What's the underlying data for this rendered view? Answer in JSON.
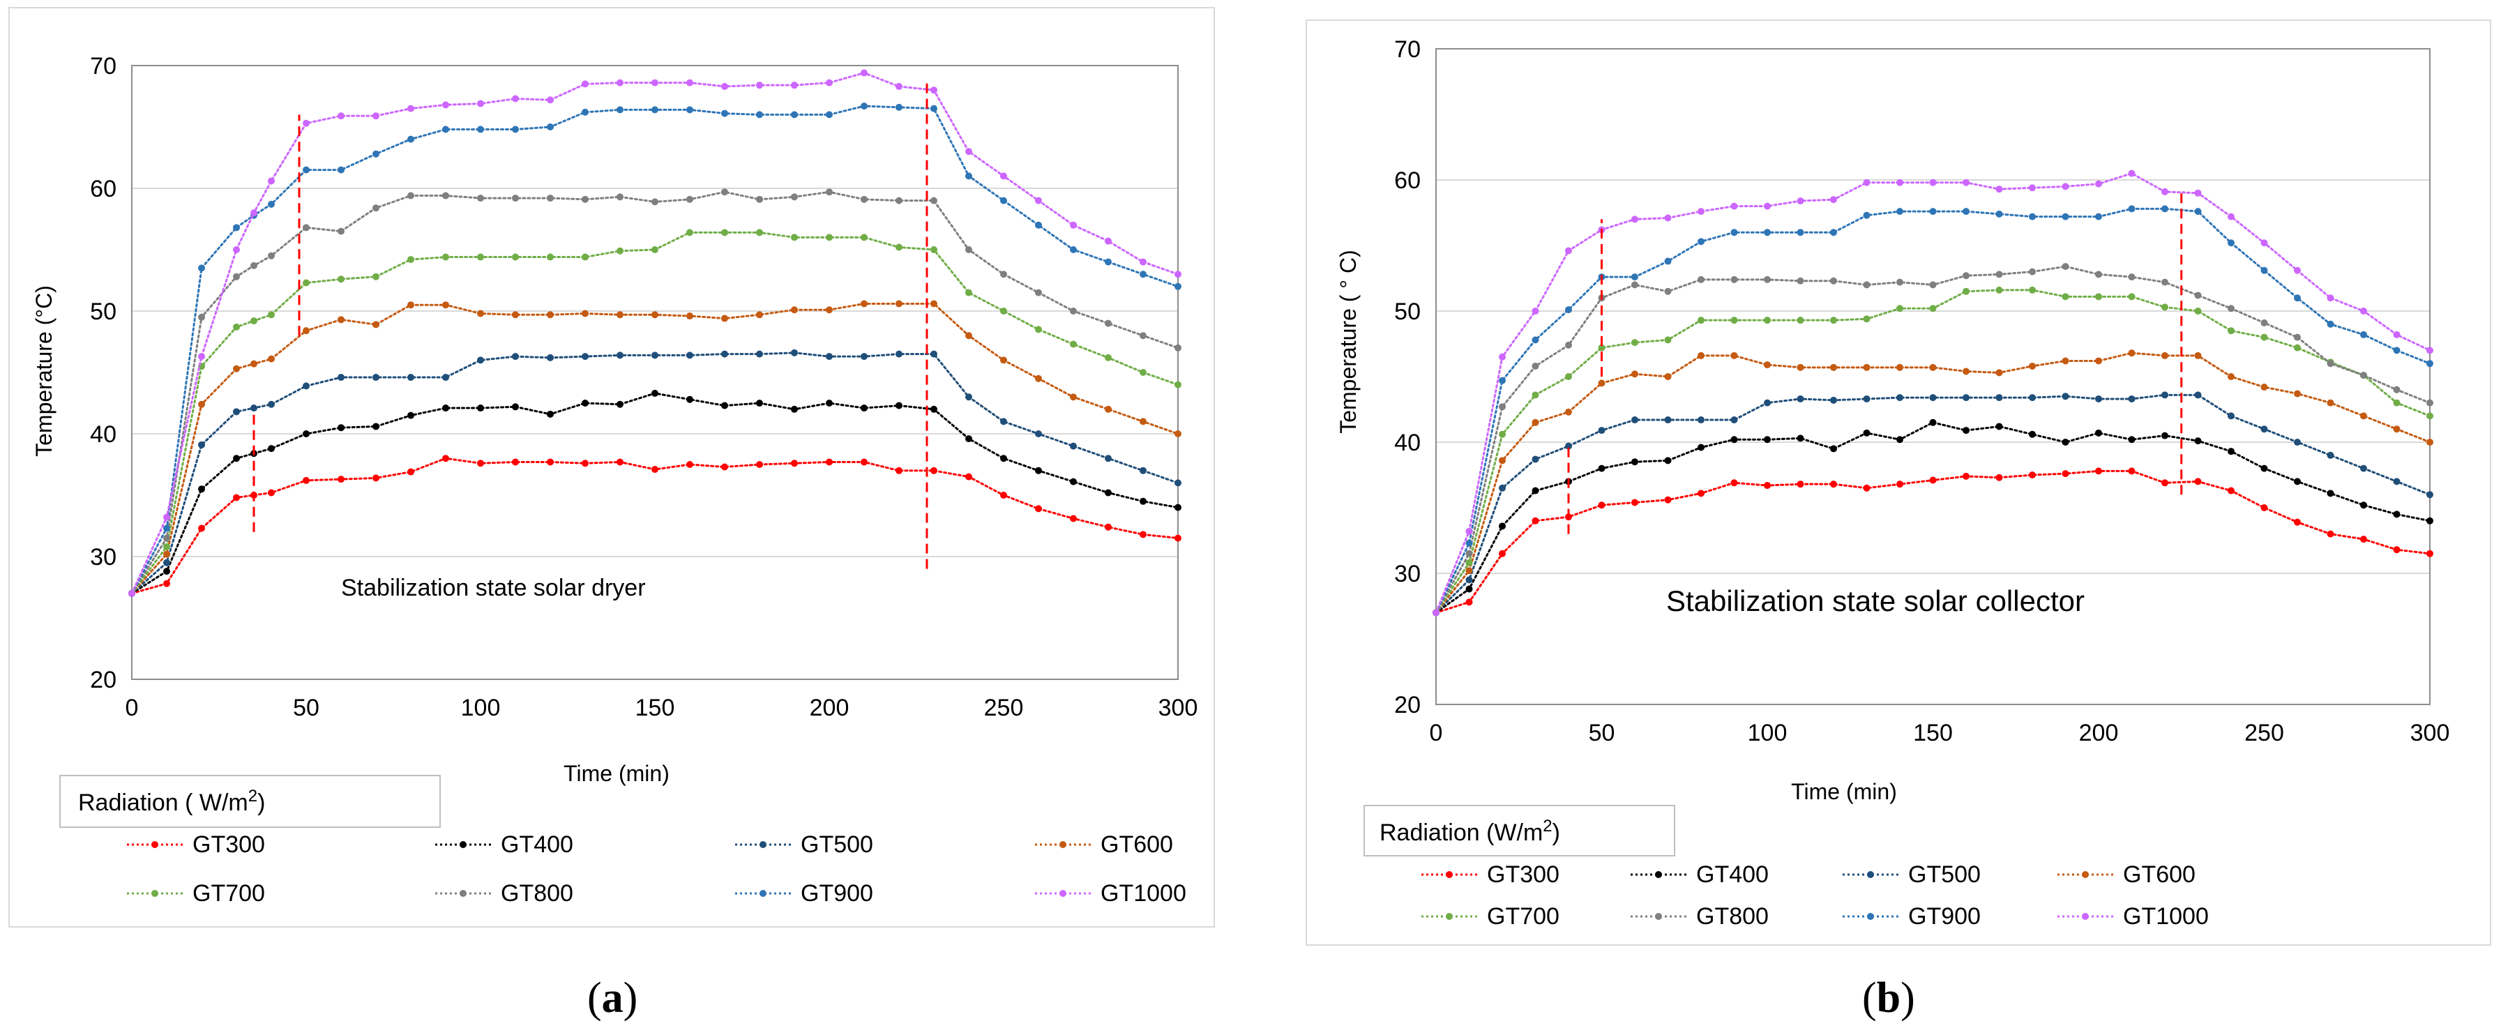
{
  "chart_data": [
    {
      "id": "a",
      "type": "line",
      "caption": "a",
      "title": "",
      "annotation": "Stabilization state  solar dryer",
      "xlabel": "Time (min)",
      "ylabel": "Temperature (°C)",
      "xlim": [
        0,
        300
      ],
      "ylim": [
        20,
        70
      ],
      "xticks": [
        0,
        50,
        100,
        150,
        200,
        250,
        300
      ],
      "yticks": [
        20,
        30,
        40,
        50,
        60,
        70
      ],
      "grid": "horizontal",
      "legend_title": "Radiation ( W/m",
      "legend_title_sup": "2",
      "legend_title_close": ")",
      "markers": [
        {
          "x": 35,
          "y0": 32,
          "y1": 42,
          "color": "#ff0000"
        },
        {
          "x": 48,
          "y0": 48,
          "y1": 66,
          "color": "#ff0000"
        },
        {
          "x": 228,
          "y0": 29,
          "y1": 69,
          "color": "#ff0000"
        }
      ],
      "x": [
        0,
        10,
        20,
        30,
        35,
        40,
        50,
        60,
        70,
        80,
        90,
        100,
        110,
        120,
        130,
        140,
        150,
        160,
        170,
        180,
        190,
        200,
        210,
        220,
        230,
        240,
        250,
        260,
        270,
        280,
        290,
        300
      ],
      "series": [
        {
          "name": "GT300",
          "color": "#ff0000",
          "values": [
            27,
            27.8,
            32.3,
            34.8,
            35,
            35.2,
            36.2,
            36.3,
            36.4,
            36.9,
            38,
            37.6,
            37.7,
            37.7,
            37.6,
            37.7,
            37.1,
            37.5,
            37.3,
            37.5,
            37.6,
            37.7,
            37.7,
            37.0,
            37.0,
            36.5,
            35,
            33.9,
            33.1,
            32.4,
            31.8,
            31.5
          ]
        },
        {
          "name": "GT400",
          "color": "#000000",
          "values": [
            27,
            28.8,
            35.5,
            38,
            38.4,
            38.8,
            40,
            40.5,
            40.6,
            41.5,
            42.1,
            42.1,
            42.2,
            41.6,
            42.5,
            42.4,
            43.3,
            42.8,
            42.3,
            42.5,
            42,
            42.5,
            42.1,
            42.3,
            42,
            39.6,
            38,
            37,
            36.1,
            35.2,
            34.5,
            34
          ]
        },
        {
          "name": "GT500",
          "color": "#1f4e79",
          "values": [
            27,
            29.5,
            39.1,
            41.8,
            42.1,
            42.4,
            43.9,
            44.6,
            44.6,
            44.6,
            44.6,
            46,
            46.3,
            46.2,
            46.3,
            46.4,
            46.4,
            46.4,
            46.5,
            46.5,
            46.6,
            46.3,
            46.3,
            46.5,
            46.5,
            43,
            41,
            40,
            39,
            38,
            37,
            36
          ]
        },
        {
          "name": "GT600",
          "color": "#c55a11",
          "values": [
            27,
            30.2,
            42.4,
            45.3,
            45.7,
            46.1,
            48.4,
            49.3,
            48.9,
            50.5,
            50.5,
            49.8,
            49.7,
            49.7,
            49.8,
            49.7,
            49.7,
            49.6,
            49.4,
            49.7,
            50.1,
            50.1,
            50.6,
            50.6,
            50.6,
            48,
            46,
            44.5,
            43,
            42,
            41,
            40
          ]
        },
        {
          "name": "GT700",
          "color": "#70ad47",
          "values": [
            27,
            30.8,
            45.5,
            48.7,
            49.2,
            49.7,
            52.3,
            52.6,
            52.8,
            54.2,
            54.4,
            54.4,
            54.4,
            54.4,
            54.4,
            54.9,
            55,
            56.4,
            56.4,
            56.4,
            56,
            56,
            56,
            55.2,
            55,
            51.5,
            50,
            48.5,
            47.3,
            46.2,
            45,
            44
          ]
        },
        {
          "name": "GT800",
          "color": "#7f7f7f",
          "values": [
            27,
            31.5,
            49.5,
            52.8,
            53.7,
            54.5,
            56.8,
            56.5,
            58.4,
            59.4,
            59.4,
            59.2,
            59.2,
            59.2,
            59.1,
            59.3,
            58.9,
            59.1,
            59.7,
            59.1,
            59.3,
            59.7,
            59.1,
            59,
            59,
            55,
            53,
            51.5,
            50,
            49,
            48,
            47
          ]
        },
        {
          "name": "GT900",
          "color": "#2e75b6",
          "values": [
            27,
            32.3,
            53.5,
            56.8,
            57.8,
            58.7,
            61.5,
            61.5,
            62.8,
            64,
            64.8,
            64.8,
            64.8,
            65,
            66.2,
            66.4,
            66.4,
            66.4,
            66.1,
            66,
            66,
            66,
            66.7,
            66.6,
            66.5,
            61,
            59,
            57,
            55,
            54,
            53,
            52
          ]
        },
        {
          "name": "GT1000",
          "color": "#cc66ff",
          "values": [
            27,
            33.2,
            46.3,
            55,
            58,
            60.6,
            65.3,
            65.9,
            65.9,
            66.5,
            66.8,
            66.9,
            67.3,
            67.2,
            68.5,
            68.6,
            68.6,
            68.6,
            68.3,
            68.4,
            68.4,
            68.6,
            69.4,
            68.3,
            68,
            63,
            61,
            59,
            57,
            55.7,
            54,
            53
          ]
        }
      ]
    },
    {
      "id": "b",
      "type": "line",
      "caption": "b",
      "title": "",
      "annotation": "Stabilization state  solar collector",
      "xlabel": "Time  (min)",
      "ylabel": "Temperature ( ° C)",
      "xlim": [
        0,
        300
      ],
      "ylim": [
        20,
        70
      ],
      "xticks": [
        0,
        50,
        100,
        150,
        200,
        250,
        300
      ],
      "yticks": [
        20,
        30,
        40,
        50,
        60,
        70
      ],
      "grid": "horizontal",
      "legend_title": "Radiation (W/m",
      "legend_title_sup": "2",
      "legend_title_close": ")",
      "markers": [
        {
          "x": 40,
          "y0": 33,
          "y1": 40,
          "color": "#ff0000"
        },
        {
          "x": 50,
          "y0": 45,
          "y1": 57,
          "color": "#ff0000"
        },
        {
          "x": 225,
          "y0": 36,
          "y1": 59,
          "color": "#ff0000"
        }
      ],
      "x": [
        0,
        10,
        20,
        30,
        40,
        50,
        60,
        70,
        80,
        90,
        100,
        110,
        120,
        130,
        140,
        150,
        160,
        170,
        180,
        190,
        200,
        210,
        220,
        230,
        240,
        250,
        260,
        270,
        280,
        290,
        300
      ],
      "series": [
        {
          "name": "GT300",
          "color": "#ff0000",
          "values": [
            27,
            27.8,
            31.5,
            34,
            34.3,
            35.2,
            35.4,
            35.6,
            36.1,
            36.9,
            36.7,
            36.8,
            36.8,
            36.5,
            36.8,
            37.1,
            37.4,
            37.3,
            37.5,
            37.6,
            37.8,
            37.8,
            36.9,
            37,
            36.3,
            35,
            33.9,
            33,
            32.6,
            31.8,
            31.5
          ]
        },
        {
          "name": "GT400",
          "color": "#000000",
          "values": [
            27,
            28.8,
            33.6,
            36.3,
            37,
            38,
            38.5,
            38.6,
            39.6,
            40.2,
            40.2,
            40.3,
            39.5,
            40.7,
            40.2,
            41.5,
            40.9,
            41.2,
            40.6,
            40,
            40.7,
            40.2,
            40.5,
            40.1,
            39.3,
            38,
            37,
            36.1,
            35.2,
            34.5,
            34
          ]
        },
        {
          "name": "GT500",
          "color": "#1f4e79",
          "values": [
            27,
            29.5,
            36.5,
            38.7,
            39.7,
            40.9,
            41.7,
            41.7,
            41.7,
            41.7,
            43,
            43.3,
            43.2,
            43.3,
            43.4,
            43.4,
            43.4,
            43.4,
            43.4,
            43.5,
            43.3,
            43.3,
            43.6,
            43.6,
            42,
            41,
            40,
            39,
            38,
            37,
            36
          ]
        },
        {
          "name": "GT600",
          "color": "#c55a11",
          "values": [
            27,
            30.2,
            38.6,
            41.5,
            42.3,
            44.5,
            45.2,
            45,
            46.6,
            46.6,
            45.9,
            45.7,
            45.7,
            45.7,
            45.7,
            45.7,
            45.4,
            45.3,
            45.8,
            46.2,
            46.2,
            46.8,
            46.6,
            46.6,
            45,
            44.2,
            43.7,
            43,
            42,
            41,
            40
          ]
        },
        {
          "name": "GT700",
          "color": "#70ad47",
          "values": [
            27,
            30.8,
            40.6,
            43.6,
            45,
            47.2,
            47.6,
            47.8,
            49.3,
            49.3,
            49.3,
            49.3,
            49.3,
            49.4,
            50.2,
            50.2,
            51.5,
            51.6,
            51.6,
            51.1,
            51.1,
            51.1,
            50.3,
            50,
            48.5,
            48,
            47.2,
            46.1,
            45.1,
            43,
            42
          ]
        },
        {
          "name": "GT800",
          "color": "#7f7f7f",
          "values": [
            27,
            31.5,
            42.7,
            45.8,
            47.4,
            51,
            52,
            51.5,
            52.4,
            52.4,
            52.4,
            52.3,
            52.3,
            52,
            52.2,
            52,
            52.7,
            52.8,
            53,
            53.4,
            52.8,
            52.6,
            52.2,
            51.2,
            50.2,
            49.1,
            48,
            46,
            45.1,
            44,
            43
          ]
        },
        {
          "name": "GT900",
          "color": "#2e75b6",
          "values": [
            27,
            32.3,
            44.7,
            47.8,
            50.1,
            52.6,
            52.6,
            53.8,
            55.3,
            56,
            56,
            56,
            56,
            57.3,
            57.6,
            57.6,
            57.6,
            57.4,
            57.2,
            57.2,
            57.2,
            57.8,
            57.8,
            57.6,
            55.2,
            53.1,
            51,
            49,
            48.2,
            47,
            46
          ]
        },
        {
          "name": "GT1000",
          "color": "#cc66ff",
          "values": [
            27,
            33.2,
            46.5,
            50,
            54.6,
            56.2,
            57,
            57.1,
            57.6,
            58,
            58,
            58.4,
            58.5,
            59.8,
            59.8,
            59.8,
            59.8,
            59.3,
            59.4,
            59.5,
            59.7,
            60.5,
            59.1,
            59,
            57.2,
            55.2,
            53.1,
            51,
            50,
            48.2,
            47
          ]
        }
      ]
    }
  ]
}
